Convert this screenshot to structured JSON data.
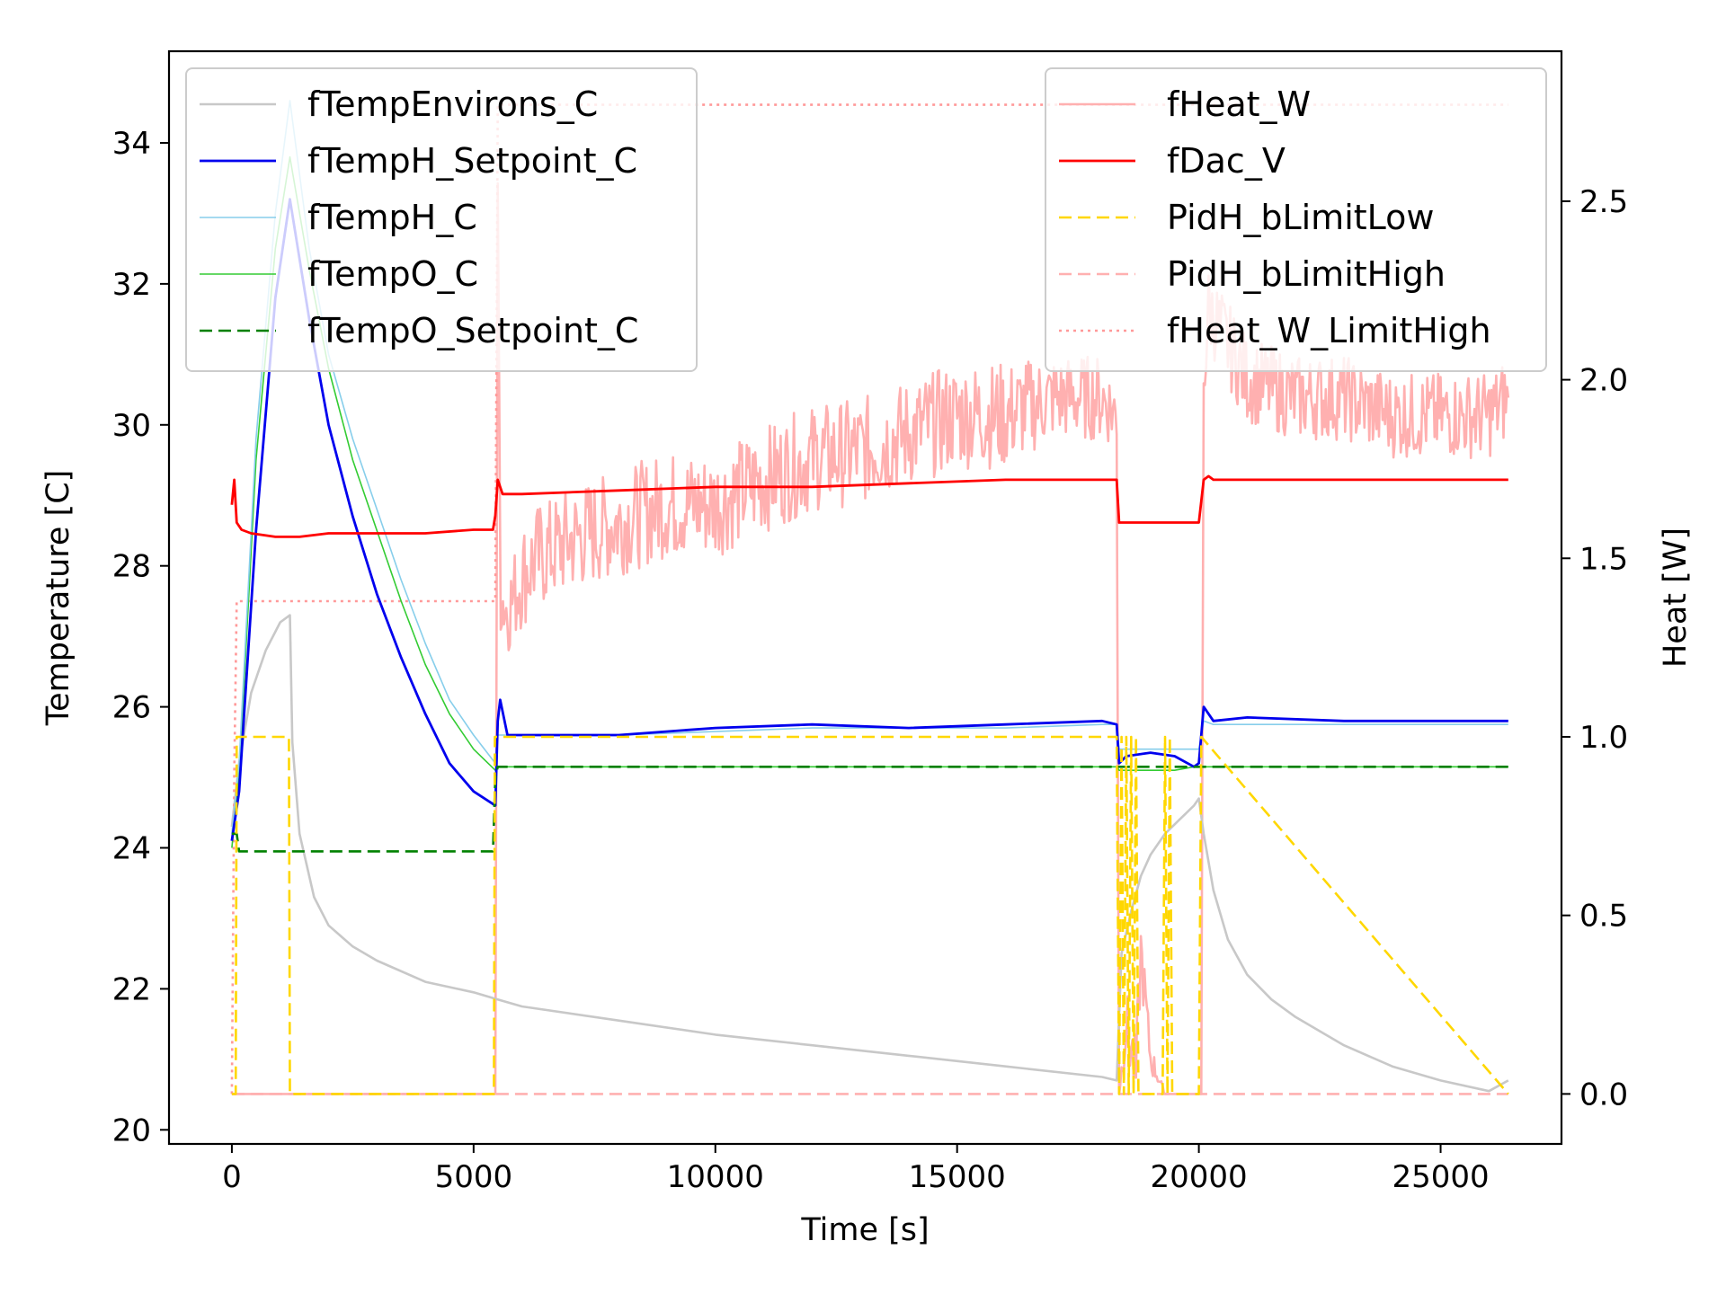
{
  "chart_data": {
    "type": "line",
    "xlabel": "Time [s]",
    "ylabel_left": "Temperature [C]",
    "ylabel_right": "Heat [W]",
    "xlim": [
      -1300,
      27500
    ],
    "ylim_left": [
      19.8,
      35.3
    ],
    "ylim_right": [
      -0.14,
      2.92
    ],
    "x_ticks": [
      0,
      5000,
      10000,
      15000,
      20000,
      25000
    ],
    "x_tick_labels": [
      "0",
      "5000",
      "10000",
      "15000",
      "20000",
      "25000"
    ],
    "y_left_ticks": [
      20,
      22,
      24,
      26,
      28,
      30,
      32,
      34
    ],
    "y_left_tick_labels": [
      "20",
      "22",
      "24",
      "26",
      "28",
      "30",
      "32",
      "34"
    ],
    "y_right_ticks": [
      0,
      0.5,
      1,
      1.5,
      2,
      2.5
    ],
    "y_right_tick_labels": [
      "0.0",
      "0.5",
      "1.0",
      "1.5",
      "2.0",
      "2.5"
    ],
    "grid": false,
    "legend_left_placement": "upper-left",
    "legend_right_placement": "upper-right",
    "series_left": [
      {
        "name": "fTempEnvirons_C",
        "color": "#c8c8c8",
        "style": "solid",
        "width": 2.6,
        "x": [
          0,
          150,
          400,
          700,
          1000,
          1200,
          1250,
          1400,
          1700,
          2000,
          2500,
          3000,
          4000,
          5000,
          5500,
          6000,
          8000,
          10000,
          12000,
          14000,
          16000,
          18000,
          18300,
          18400,
          18600,
          18800,
          19000,
          19300,
          19600,
          19900,
          20000,
          20100,
          20300,
          20600,
          21000,
          21500,
          22000,
          23000,
          24000,
          25000,
          26000,
          26400
        ],
        "y": [
          24.3,
          25.2,
          26.2,
          26.8,
          27.2,
          27.3,
          25.5,
          24.2,
          23.3,
          22.9,
          22.6,
          22.4,
          22.1,
          21.95,
          21.85,
          21.75,
          21.55,
          21.35,
          21.2,
          21.05,
          20.9,
          20.75,
          20.7,
          22.5,
          23.1,
          23.6,
          23.9,
          24.2,
          24.4,
          24.6,
          24.7,
          24.2,
          23.4,
          22.7,
          22.2,
          21.85,
          21.6,
          21.2,
          20.9,
          20.7,
          20.55,
          20.7
        ]
      },
      {
        "name": "fTempH_Setpoint_C",
        "color": "#0000ee",
        "style": "solid",
        "width": 2.8,
        "x": [
          0,
          150,
          500,
          900,
          1200,
          1600,
          2000,
          2500,
          3000,
          3500,
          4000,
          4500,
          5000,
          5450,
          5500,
          5550,
          5700,
          6000,
          8000,
          10000,
          12000,
          14000,
          16000,
          18000,
          18300,
          18350,
          18500,
          19000,
          19500,
          19900,
          20000,
          20100,
          20300,
          21000,
          23000,
          25000,
          26400
        ],
        "y": [
          24.1,
          24.8,
          28.5,
          31.8,
          33.2,
          31.5,
          30.0,
          28.7,
          27.6,
          26.7,
          25.9,
          25.2,
          24.8,
          24.6,
          25.8,
          26.1,
          25.6,
          25.6,
          25.6,
          25.7,
          25.75,
          25.7,
          25.75,
          25.8,
          25.75,
          25.2,
          25.3,
          25.35,
          25.3,
          25.15,
          25.2,
          26.0,
          25.8,
          25.85,
          25.8,
          25.8,
          25.8
        ]
      },
      {
        "name": "fTempH_C",
        "color": "#87ceeb",
        "style": "solid",
        "width": 1.6,
        "x": [
          0,
          150,
          500,
          900,
          1200,
          1600,
          2000,
          2500,
          3000,
          3500,
          4000,
          4500,
          5000,
          5450,
          5500,
          5700,
          6000,
          8000,
          10000,
          12000,
          14000,
          16000,
          18000,
          18300,
          18350,
          18500,
          19000,
          19500,
          19900,
          20000,
          20100,
          20300,
          21000,
          23000,
          25000,
          26400
        ],
        "y": [
          24.2,
          25.2,
          29.8,
          33.0,
          34.6,
          32.5,
          31.0,
          29.8,
          28.8,
          27.8,
          26.9,
          26.1,
          25.6,
          25.2,
          25.6,
          25.6,
          25.6,
          25.6,
          25.65,
          25.7,
          25.7,
          25.7,
          25.75,
          25.75,
          25.4,
          25.4,
          25.4,
          25.4,
          25.4,
          25.4,
          25.8,
          25.75,
          25.75,
          25.75,
          25.75,
          25.75
        ]
      },
      {
        "name": "fTempO_C",
        "color": "#33cc33",
        "style": "solid",
        "width": 1.6,
        "x": [
          0,
          150,
          500,
          900,
          1200,
          1600,
          2000,
          2500,
          3000,
          3500,
          4000,
          4500,
          5000,
          5450,
          5500,
          6000,
          8000,
          10000,
          12000,
          14000,
          16000,
          18000,
          18300,
          18350,
          18500,
          19000,
          19500,
          19900,
          20000,
          20100,
          21000,
          23000,
          25000,
          26400
        ],
        "y": [
          24.0,
          25.0,
          29.5,
          32.5,
          33.8,
          32.2,
          30.8,
          29.5,
          28.5,
          27.5,
          26.6,
          25.9,
          25.4,
          25.1,
          25.15,
          25.15,
          25.15,
          25.15,
          25.15,
          25.15,
          25.15,
          25.15,
          25.15,
          25.1,
          25.1,
          25.1,
          25.1,
          25.15,
          25.15,
          25.15,
          25.15,
          25.15,
          25.15,
          25.15
        ]
      },
      {
        "name": "fTempO_Setpoint_C",
        "color": "#008000",
        "style": "dashed",
        "width": 2.6,
        "x": [
          0,
          100,
          150,
          5400,
          5450,
          5500,
          26400
        ],
        "y": [
          24.2,
          24.2,
          23.95,
          23.95,
          25.0,
          25.15,
          25.15
        ]
      }
    ],
    "series_right": [
      {
        "name": "fHeat_W",
        "color": "#ffb0b0",
        "style": "solid",
        "width": 2.6,
        "x": [
          0,
          100,
          5400,
          5450,
          5500,
          5560,
          5700,
          6000,
          6300,
          7000,
          8000,
          9000,
          10000,
          11000,
          12000,
          13000,
          14000,
          15000,
          16000,
          17000,
          18000,
          18300,
          18350,
          18500,
          18700,
          18800,
          19000,
          19300,
          19500,
          20000,
          20050,
          20100,
          20200,
          21000,
          22000,
          23000,
          24000,
          25000,
          26000,
          26400
        ],
        "y": [
          0,
          0,
          0,
          0,
          2.55,
          1.4,
          1.35,
          1.45,
          1.5,
          1.55,
          1.6,
          1.65,
          1.65,
          1.72,
          1.78,
          1.8,
          1.85,
          1.9,
          1.9,
          1.95,
          1.95,
          1.9,
          0,
          0.2,
          0.05,
          0.4,
          0.1,
          0,
          0,
          0,
          0,
          2.0,
          2.2,
          2.0,
          1.95,
          1.95,
          1.9,
          1.9,
          1.9,
          1.95
        ],
        "noise": [
          0,
          0,
          0,
          0,
          0,
          0.12,
          0.12,
          0.15,
          0.15,
          0.15,
          0.15,
          0.15,
          0.15,
          0.15,
          0.15,
          0.15,
          0.15,
          0.15,
          0.15,
          0.12,
          0.12,
          0.1,
          0,
          0.1,
          0.1,
          0.1,
          0.05,
          0,
          0,
          0,
          0,
          0.12,
          0.12,
          0.12,
          0.12,
          0.12,
          0.12,
          0.12,
          0.12,
          0.12
        ]
      },
      {
        "name": "fDac_V",
        "color": "#ff0000",
        "style": "solid",
        "width": 2.8,
        "x": [
          0,
          50,
          100,
          200,
          400,
          900,
          1400,
          2000,
          3000,
          4000,
          5000,
          5400,
          5450,
          5500,
          5600,
          5700,
          6000,
          8000,
          10000,
          12000,
          14000,
          16000,
          18000,
          18200,
          18300,
          18350,
          19000,
          19500,
          19900,
          20000,
          20100,
          20200,
          20300,
          21000,
          23000,
          25000,
          26400
        ],
        "y": [
          1.65,
          1.72,
          1.6,
          1.58,
          1.57,
          1.56,
          1.56,
          1.57,
          1.57,
          1.57,
          1.58,
          1.58,
          1.62,
          1.72,
          1.68,
          1.68,
          1.68,
          1.69,
          1.7,
          1.7,
          1.71,
          1.72,
          1.72,
          1.72,
          1.72,
          1.6,
          1.6,
          1.6,
          1.6,
          1.6,
          1.72,
          1.73,
          1.72,
          1.72,
          1.72,
          1.72,
          1.72
        ]
      },
      {
        "name": "PidH_bLimitLow",
        "color": "#ffd700",
        "style": "dashed",
        "width": 2.6,
        "x": [
          0,
          80,
          100,
          1180,
          1200,
          5420,
          5440,
          18300,
          18350,
          18400,
          18450,
          18500,
          18550,
          18600,
          18650,
          18700,
          18750,
          19250,
          19300,
          19350,
          19400,
          19450,
          20000,
          20050,
          26400
        ],
        "y": [
          0,
          0,
          1,
          1,
          0,
          0,
          1,
          1,
          0,
          1,
          0,
          1,
          0,
          1,
          0,
          1,
          0,
          0,
          1,
          0,
          1,
          0,
          0,
          1,
          0
        ]
      },
      {
        "name": "PidH_bLimitHigh",
        "color": "#ffb0b0",
        "style": "dashed",
        "width": 2.6,
        "x": [
          0,
          26400
        ],
        "y": [
          0,
          0
        ]
      },
      {
        "name": "fHeat_W_LimitHigh",
        "color": "#ff9999",
        "style": "dotted",
        "width": 2.6,
        "x": [
          0,
          50,
          100,
          5400,
          5450,
          5500,
          26400
        ],
        "y": [
          0,
          0.9,
          1.38,
          1.38,
          1.38,
          2.77,
          2.77
        ]
      }
    ]
  }
}
